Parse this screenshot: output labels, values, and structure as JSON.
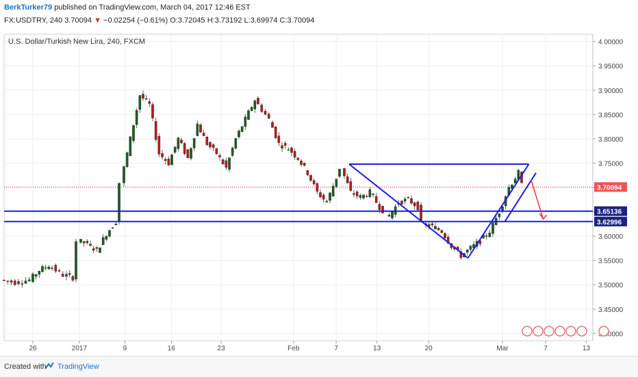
{
  "header": {
    "author": "BerkTurker79",
    "published": "published on TradingView.com, March 04, 2017 12:46 EST",
    "symbol": "FX:USDTRY, 240",
    "last": "3.70094",
    "change": "−0.02254 (−0.61%)",
    "open": "O:3.72045",
    "high": "H:3.73192",
    "low": "L:3.69974",
    "close": "C:3.70094"
  },
  "footer": {
    "created_with": "Created with",
    "brand": "TradingView"
  },
  "chart_data": {
    "type": "candlestick",
    "title": "U.S. Dollar/Turkish New Lira, 240, FXCM",
    "y_ticks": [
      "4.00000",
      "3.95000",
      "3.90000",
      "3.85000",
      "3.80000",
      "3.75000",
      "3.70000",
      "3.65000",
      "3.60000",
      "3.55000",
      "3.50000",
      "3.45000",
      "3.40000"
    ],
    "ylim": [
      3.385,
      4.015
    ],
    "x_ticks": [
      {
        "label": "26",
        "pos": 0.06
      },
      {
        "label": "2017",
        "pos": 0.157
      },
      {
        "label": "9",
        "pos": 0.252
      },
      {
        "label": "16",
        "pos": 0.349
      },
      {
        "label": "23",
        "pos": 0.453
      },
      {
        "label": "Feb",
        "pos": 0.604
      },
      {
        "label": "7",
        "pos": 0.693
      },
      {
        "label": "13",
        "pos": 0.778
      },
      {
        "label": "20",
        "pos": 0.886
      },
      {
        "label": "Mar",
        "pos": 1.04
      },
      {
        "label": "7",
        "pos": 1.13
      },
      {
        "label": "13",
        "pos": 1.215
      }
    ],
    "price_path": [
      [
        0.0,
        3.51
      ],
      [
        0.03,
        3.505
      ],
      [
        0.06,
        3.51
      ],
      [
        0.08,
        3.53
      ],
      [
        0.1,
        3.54
      ],
      [
        0.13,
        3.52
      ],
      [
        0.15,
        3.515
      ],
      [
        0.16,
        3.59
      ],
      [
        0.18,
        3.585
      ],
      [
        0.2,
        3.57
      ],
      [
        0.22,
        3.605
      ],
      [
        0.24,
        3.63
      ],
      [
        0.25,
        3.71
      ],
      [
        0.27,
        3.8
      ],
      [
        0.29,
        3.89
      ],
      [
        0.31,
        3.87
      ],
      [
        0.33,
        3.77
      ],
      [
        0.35,
        3.75
      ],
      [
        0.37,
        3.8
      ],
      [
        0.39,
        3.76
      ],
      [
        0.41,
        3.83
      ],
      [
        0.43,
        3.79
      ],
      [
        0.45,
        3.77
      ],
      [
        0.47,
        3.74
      ],
      [
        0.49,
        3.8
      ],
      [
        0.51,
        3.84
      ],
      [
        0.53,
        3.88
      ],
      [
        0.56,
        3.84
      ],
      [
        0.58,
        3.79
      ],
      [
        0.6,
        3.78
      ],
      [
        0.62,
        3.76
      ],
      [
        0.64,
        3.73
      ],
      [
        0.66,
        3.69
      ],
      [
        0.68,
        3.67
      ],
      [
        0.7,
        3.72
      ],
      [
        0.71,
        3.74
      ],
      [
        0.73,
        3.69
      ],
      [
        0.75,
        3.68
      ],
      [
        0.77,
        3.69
      ],
      [
        0.79,
        3.66
      ],
      [
        0.81,
        3.64
      ],
      [
        0.83,
        3.67
      ],
      [
        0.85,
        3.675
      ],
      [
        0.87,
        3.66
      ],
      [
        0.88,
        3.625
      ],
      [
        0.9,
        3.62
      ],
      [
        0.92,
        3.61
      ],
      [
        0.94,
        3.58
      ],
      [
        0.96,
        3.56
      ],
      [
        0.98,
        3.575
      ],
      [
        1.0,
        3.59
      ],
      [
        1.02,
        3.61
      ],
      [
        1.04,
        3.65
      ],
      [
        1.06,
        3.7
      ],
      [
        1.08,
        3.73
      ],
      [
        1.09,
        3.705
      ]
    ],
    "current_price": 3.70094,
    "support_levels": [
      3.65136,
      3.62996
    ],
    "pattern_lines": [
      {
        "from": [
          0.72,
          3.748
        ],
        "to": [
          1.095,
          3.748
        ]
      },
      {
        "from": [
          0.72,
          3.748
        ],
        "to": [
          0.968,
          3.555
        ]
      },
      {
        "from": [
          0.968,
          3.555
        ],
        "to": [
          1.095,
          3.748
        ]
      },
      {
        "from": [
          1.045,
          3.63
        ],
        "to": [
          1.11,
          3.73
        ]
      }
    ],
    "projection_arrow": {
      "from": [
        1.1,
        3.715
      ],
      "to": [
        1.125,
        3.635
      ]
    },
    "colors": {
      "up": "#1b5e20",
      "down": "#b71c1c",
      "lines": "#1a1ae6",
      "arrow": "#e53935",
      "grid": "#eeeeee"
    },
    "grid": true
  }
}
